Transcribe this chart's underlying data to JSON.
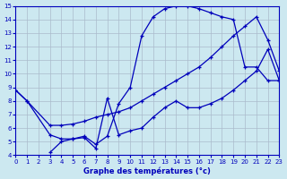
{
  "title": "Graphe des températures (°c)",
  "bg_color": "#cce8f0",
  "grid_color": "#aabbcc",
  "line_color": "#0000bb",
  "xlim": [
    0,
    23
  ],
  "ylim": [
    4,
    15
  ],
  "xticks": [
    0,
    1,
    2,
    3,
    4,
    5,
    6,
    7,
    8,
    9,
    10,
    11,
    12,
    13,
    14,
    15,
    16,
    17,
    18,
    19,
    20,
    21,
    22,
    23
  ],
  "yticks": [
    4,
    5,
    6,
    7,
    8,
    9,
    10,
    11,
    12,
    13,
    14,
    15
  ],
  "curve1_x": [
    0,
    1,
    3,
    4,
    5,
    6,
    7,
    8,
    9,
    10,
    11,
    12,
    13,
    14,
    15,
    16,
    17,
    18,
    19,
    20,
    21,
    22,
    23
  ],
  "curve1_y": [
    8.8,
    8.0,
    5.5,
    5.2,
    5.2,
    5.4,
    4.8,
    5.4,
    7.8,
    9.0,
    12.8,
    14.2,
    14.8,
    15.0,
    15.0,
    14.8,
    14.5,
    14.2,
    14.0,
    10.5,
    10.5,
    9.5,
    9.5
  ],
  "curve2_x": [
    0,
    1,
    3,
    4,
    5,
    6,
    7,
    8,
    9,
    10,
    11,
    12,
    13,
    14,
    15,
    16,
    17,
    18,
    19,
    20,
    21,
    22,
    23
  ],
  "curve2_y": [
    8.8,
    8.0,
    6.2,
    6.2,
    6.3,
    6.5,
    6.8,
    7.0,
    7.2,
    7.5,
    8.0,
    8.5,
    9.0,
    9.5,
    10.0,
    10.5,
    11.2,
    12.0,
    12.8,
    13.5,
    14.2,
    12.5,
    10.2
  ],
  "curve3_x": [
    3,
    4,
    5,
    6,
    7,
    8,
    9,
    10,
    11,
    12,
    13,
    14,
    15,
    16,
    17,
    18,
    19,
    20,
    21,
    22,
    23
  ],
  "curve3_y": [
    4.2,
    5.0,
    5.2,
    5.3,
    4.5,
    8.2,
    5.5,
    5.8,
    6.0,
    6.8,
    7.5,
    8.0,
    7.5,
    7.5,
    7.8,
    8.2,
    8.8,
    9.5,
    10.2,
    11.8,
    9.5
  ]
}
